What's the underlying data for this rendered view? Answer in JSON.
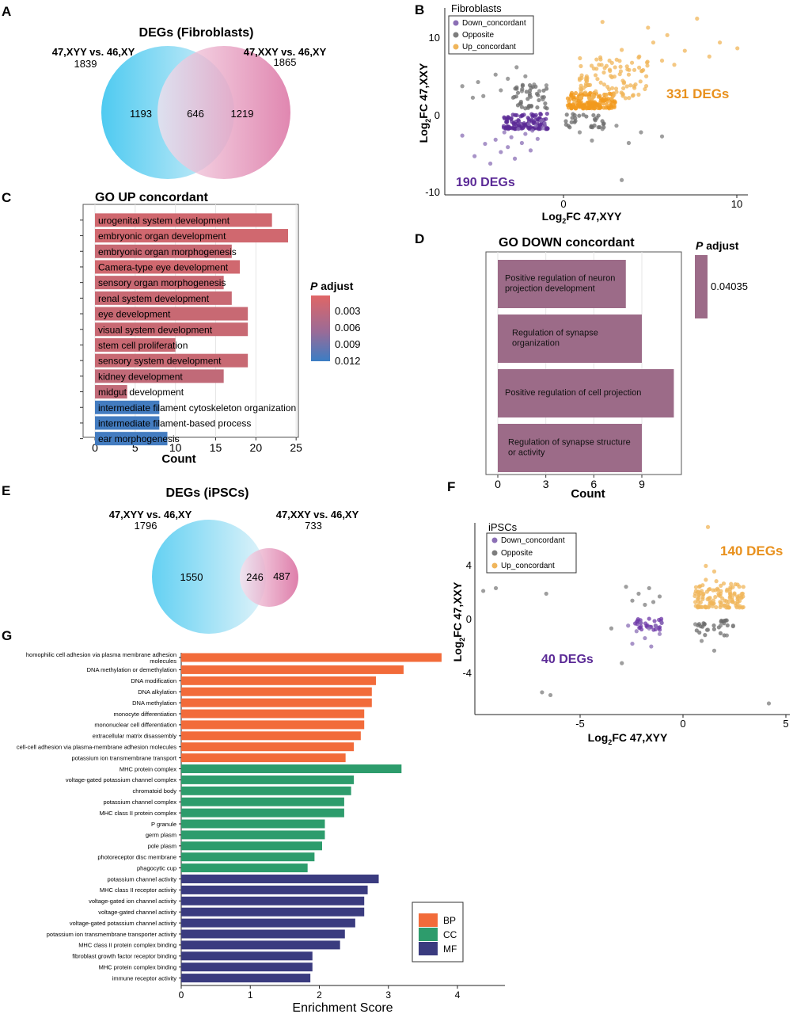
{
  "panels": {
    "A": {
      "letter": "A",
      "title": "DEGs (Fibroblasts)",
      "left_label": "47,XYY vs. 46,XY",
      "left_total": "1839",
      "right_label": "47,XXY vs. 46,XY",
      "right_total": "1865",
      "left_only": "1193",
      "overlap": "646",
      "right_only": "1219"
    },
    "B": {
      "letter": "B",
      "legend_title": "Fibroblasts",
      "legend": [
        "Down_concordant",
        "Opposite",
        "Up_concordant"
      ],
      "colors": {
        "down": "#8b6fb5",
        "opposite": "#7d7d7d",
        "up": "#f0b55a",
        "down_dense": "#5b2a96",
        "up_dense": "#f19a1e"
      },
      "xlabel_pre": "Log",
      "xlabel_sub": "2",
      "xlabel_post": "FC 47,XYY",
      "ylabel_pre": "Log",
      "ylabel_sub": "2",
      "ylabel_post": "FC 47,XXY",
      "xticks": [
        "0",
        "10"
      ],
      "yticks": [
        "10",
        "0",
        "-10"
      ],
      "up_count": "331 DEGs",
      "down_count": "190 DEGs"
    },
    "C": {
      "letter": "C",
      "title": "GO UP concordant",
      "xlabel": "Count",
      "xticks": [
        "0",
        "5",
        "10",
        "15",
        "20",
        "25"
      ],
      "legend_title_p": "P",
      "legend_title_rest": " adjust",
      "legend_ticks": [
        "0.003",
        "0.006",
        "0.009",
        "0.012"
      ]
    },
    "D": {
      "letter": "D",
      "title": "GO DOWN concordant",
      "xlabel": "Count",
      "xticks": [
        "0",
        "3",
        "6",
        "9"
      ],
      "legend_title_p": "P",
      "legend_title_rest": " adjust",
      "legend_value": "0.04035"
    },
    "E": {
      "letter": "E",
      "title": "DEGs (iPSCs)",
      "left_label": "47,XYY vs. 46,XY",
      "left_total": "1796",
      "right_label": "47,XXY vs. 46,XY",
      "right_total": "733",
      "left_only": "1550",
      "overlap": "246",
      "right_only": "487"
    },
    "F": {
      "letter": "F",
      "legend_title": "iPSCs",
      "legend": [
        "Down_concordant",
        "Opposite",
        "Up_concordant"
      ],
      "xlabel_pre": "Log",
      "xlabel_sub": "2",
      "xlabel_post": "FC 47,XYY",
      "ylabel_pre": "Log",
      "ylabel_sub": "2",
      "ylabel_post": "FC 47,XXY",
      "xticks": [
        "-5",
        "0",
        "5"
      ],
      "yticks": [
        "4",
        "0",
        "-4"
      ],
      "up_count": "140 DEGs",
      "down_count": "40 DEGs"
    },
    "G": {
      "letter": "G",
      "xlabel": "Enrichment Score",
      "xticks": [
        "0",
        "1",
        "2",
        "3",
        "4"
      ],
      "legend": [
        "BP",
        "CC",
        "MF"
      ],
      "colors": {
        "BP": "#f26b3a",
        "CC": "#2d9c6c",
        "MF": "#3a3b7f"
      }
    }
  },
  "chart_data": [
    {
      "panel": "C",
      "type": "bar",
      "orientation": "horizontal",
      "title": "GO UP concordant",
      "xlabel": "Count",
      "xlim": [
        0,
        25
      ],
      "categories": [
        "urogenital system development",
        "embryonic organ development",
        "embryonic organ morphogenesis",
        "Camera-type eye development",
        "sensory organ morphogenesis",
        "renal system development",
        "eye development",
        "visual system development",
        "stem cell proliferation",
        "sensory system development",
        "kidney development",
        "midgut development",
        "intermediate filament cytoskeleton organization",
        "intermediate filament-based process",
        "ear morphogenesis"
      ],
      "values": [
        22,
        24,
        17,
        18,
        16,
        17,
        19,
        19,
        10,
        19,
        16,
        4,
        8,
        8,
        9
      ],
      "p_adjust": [
        0.003,
        0.003,
        0.0035,
        0.003,
        0.0035,
        0.0035,
        0.0035,
        0.0035,
        0.0035,
        0.0035,
        0.004,
        0.004,
        0.012,
        0.012,
        0.012
      ],
      "colorbar": {
        "min": 0.002,
        "max": 0.0125,
        "low_color": "#e06666",
        "high_color": "#3b7dc4"
      }
    },
    {
      "panel": "D",
      "type": "bar",
      "orientation": "horizontal",
      "title": "GO DOWN concordant",
      "xlabel": "Count",
      "xlim": [
        0,
        11
      ],
      "categories": [
        "Positive regulation of neuron projection development",
        "Regulation of synapse organization",
        "Positive regulation of cell projection",
        "Regulation of synapse structure or activity"
      ],
      "values": [
        8,
        9,
        11,
        9
      ],
      "p_adjust": [
        0.04035,
        0.04035,
        0.04035,
        0.04035
      ],
      "color": "#9c6b88"
    },
    {
      "panel": "G",
      "type": "bar",
      "orientation": "horizontal",
      "xlabel": "Enrichment Score",
      "xlim": [
        0,
        4.7
      ],
      "categories": [
        "homophilic cell adhesion via plasma membrane adhesion molecules",
        "DNA methylation or demethylation",
        "DNA modification",
        "DNA alkylation",
        "DNA methylation",
        "monocyte differentiation",
        "mononuclear cell differentiation",
        "extracellular matrix disassembly",
        "cell-cell adhesion via plasma-membrane adhesion molecules",
        "potassium ion transmembrane transport",
        "MHC protein complex",
        "voltage-gated potassium channel complex",
        "chromatoid body",
        "potassium channel complex",
        "MHC class II protein complex",
        "P granule",
        "germ plasm",
        "pole plasm",
        "photoreceptor disc membrane",
        "phagocytic cup",
        "potassium channel activity",
        "MHC class II receptor activity",
        "voltage-gated ion channel activity",
        "voltage-gated channel activity",
        "voltage-gated potassium channel activity",
        "potassium ion transmembrane transporter activity",
        "MHC class II protein complex binding",
        "fibroblast growth factor receptor binding",
        "MHC protein complex binding",
        "immune receptor activity"
      ],
      "values": [
        3.77,
        3.22,
        2.82,
        2.76,
        2.76,
        2.65,
        2.65,
        2.6,
        2.5,
        2.38,
        3.19,
        2.5,
        2.46,
        2.36,
        2.36,
        2.08,
        2.08,
        2.04,
        1.93,
        1.83,
        2.86,
        2.7,
        2.65,
        2.65,
        2.52,
        2.37,
        2.3,
        1.9,
        1.9,
        1.87
      ],
      "group": [
        "BP",
        "BP",
        "BP",
        "BP",
        "BP",
        "BP",
        "BP",
        "BP",
        "BP",
        "BP",
        "CC",
        "CC",
        "CC",
        "CC",
        "CC",
        "CC",
        "CC",
        "CC",
        "CC",
        "CC",
        "MF",
        "MF",
        "MF",
        "MF",
        "MF",
        "MF",
        "MF",
        "MF",
        "MF",
        "MF"
      ]
    },
    {
      "panel": "B",
      "type": "scatter",
      "xlabel": "Log2FC 47,XYY",
      "ylabel": "Log2FC 47,XXY",
      "xlim": [
        -6.5,
        10.8
      ],
      "ylim": [
        -10.2,
        12.5
      ],
      "series": [
        {
          "name": "Down_concordant",
          "points": [
            [
              -5.5,
              -3
            ],
            [
              -4.8,
              -5.5
            ],
            [
              -4.2,
              -4
            ],
            [
              -3.9,
              -6.4
            ],
            [
              -3.6,
              -3.5
            ],
            [
              -3.3,
              -5
            ],
            [
              -3.1,
              -2.6
            ],
            [
              -2.9,
              -4.4
            ],
            [
              -2.7,
              -3.2
            ],
            [
              -2.5,
              -5.8
            ],
            [
              -2.3,
              -2.2
            ],
            [
              -2.1,
              -3.9
            ],
            [
              -1.9,
              -2.8
            ],
            [
              -1.7,
              -1.6
            ],
            [
              -1.6,
              -4.8
            ],
            [
              -1.5,
              -2.4
            ],
            [
              -1.3,
              -1.8
            ],
            [
              -1.2,
              -3.4
            ],
            [
              -1.0,
              -1.2
            ],
            [
              -0.9,
              -2.1
            ],
            [
              -0.8,
              -1.5
            ]
          ]
        },
        {
          "name": "Opposite",
          "points": [
            [
              -5.5,
              3
            ],
            [
              -4.9,
              1.6
            ],
            [
              -4.6,
              3.5
            ],
            [
              -4.3,
              1.8
            ],
            [
              -3.6,
              4.4
            ],
            [
              -3.3,
              2.5
            ],
            [
              -2.9,
              3.9
            ],
            [
              -2.6,
              1.6
            ],
            [
              -2.4,
              5.3
            ],
            [
              -2.1,
              2.4
            ],
            [
              -1.9,
              4.2
            ],
            [
              -1.6,
              1.7
            ],
            [
              -1.4,
              3.2
            ],
            [
              -1.1,
              2.4
            ],
            [
              -0.9,
              1.4
            ],
            [
              -0.7,
              3.1
            ],
            [
              1.2,
              -2.6
            ],
            [
              1.9,
              -3.6
            ],
            [
              2.5,
              -2.2
            ],
            [
              3.3,
              -1.8
            ],
            [
              4,
              -3.9
            ],
            [
              4.7,
              -2.6
            ],
            [
              3.6,
              -8.4
            ],
            [
              5.9,
              -3.1
            ]
          ]
        },
        {
          "name": "Up_concordant",
          "points": [
            [
              0.9,
              1.2
            ],
            [
              1.3,
              2.6
            ],
            [
              1.6,
              4.2
            ],
            [
              2,
              1.8
            ],
            [
              2.3,
              5.6
            ],
            [
              2.6,
              3.2
            ],
            [
              2.9,
              6.1
            ],
            [
              3.3,
              2.3
            ],
            [
              3.6,
              7.4
            ],
            [
              4,
              4.4
            ],
            [
              4.3,
              3
            ],
            [
              4.6,
              6.6
            ],
            [
              5,
              4.2
            ],
            [
              5.4,
              8.3
            ],
            [
              5.9,
              6.1
            ],
            [
              6.2,
              9.2
            ],
            [
              6.6,
              5.6
            ],
            [
              7.2,
              7.3
            ],
            [
              7.9,
              11.2
            ],
            [
              8.6,
              6.6
            ],
            [
              9.2,
              8.3
            ],
            [
              10.2,
              7.6
            ],
            [
              2.5,
              10.8
            ],
            [
              5.1,
              10.1
            ],
            [
              3.9,
              5.4
            ]
          ]
        }
      ]
    },
    {
      "panel": "F",
      "type": "scatter",
      "xlabel": "Log2FC 47,XYY",
      "ylabel": "Log2FC 47,XXY",
      "xlim": [
        -9.6,
        5.4
      ],
      "ylim": [
        -7.3,
        6.5
      ],
      "series": [
        {
          "name": "Down_concordant",
          "points": [
            [
              -2.3,
              -0.9
            ],
            [
              -2.1,
              -2.2
            ],
            [
              -1.9,
              -1.3
            ],
            [
              -1.7,
              -0.7
            ],
            [
              -1.5,
              -1.8
            ],
            [
              -1.3,
              -1.1
            ],
            [
              -1.2,
              -2.4
            ],
            [
              -1.0,
              -0.9
            ],
            [
              -0.8,
              -1.5
            ],
            [
              -0.7,
              -0.7
            ]
          ]
        },
        {
          "name": "Opposite",
          "points": [
            [
              -2.4,
              1.9
            ],
            [
              -2.1,
              0.9
            ],
            [
              -1.8,
              1.4
            ],
            [
              -1.5,
              0.6
            ],
            [
              -1.3,
              1.8
            ],
            [
              -1.1,
              0.8
            ],
            [
              -0.8,
              1.2
            ],
            [
              0.9,
              -0.8
            ],
            [
              1.2,
              -2
            ],
            [
              1.5,
              -1.2
            ],
            [
              1.8,
              -2.7
            ],
            [
              2.1,
              -0.9
            ],
            [
              2.4,
              -1.6
            ],
            [
              2.7,
              -0.9
            ],
            [
              -3.1,
              -1.1
            ],
            [
              -2.6,
              -3.6
            ],
            [
              4.4,
              -6.5
            ],
            [
              -6,
              -5.9
            ],
            [
              -6.4,
              -5.7
            ],
            [
              -9.2,
              1.6
            ],
            [
              -8.6,
              1.8
            ],
            [
              -6.2,
              1.4
            ]
          ]
        },
        {
          "name": "Up_concordant",
          "points": [
            [
              0.9,
              0.8
            ],
            [
              1.2,
              1.6
            ],
            [
              1.4,
              2.4
            ],
            [
              1.6,
              1.1
            ],
            [
              1.8,
              3
            ],
            [
              2.1,
              1.4
            ],
            [
              2.3,
              0.9
            ],
            [
              2.6,
              2.1
            ],
            [
              2.9,
              1.2
            ],
            [
              3.1,
              1.1
            ],
            [
              1.4,
              3.4
            ],
            [
              1.9,
              2.3
            ],
            [
              1.5,
              6.2
            ],
            [
              2.4,
              1.6
            ]
          ]
        }
      ]
    }
  ]
}
